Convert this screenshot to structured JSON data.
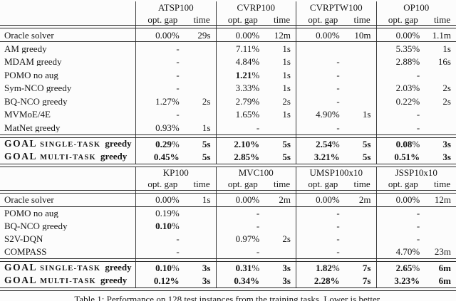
{
  "caption": "Table 1: Performance on 128 test instances from the training tasks. Lower is better.",
  "subheader": {
    "gap": "opt. gap",
    "time": "time"
  },
  "goal_brand": "GOAL",
  "tables": [
    {
      "columns": [
        "ATSP100",
        "CVRP100",
        "CVRPTW100",
        "OP100"
      ],
      "oracle": {
        "label": "Oracle solver",
        "cells": [
          [
            "0.00%",
            "29s"
          ],
          [
            "0.00%",
            "12m"
          ],
          [
            "0.00%",
            "10m"
          ],
          [
            "0.00%",
            "1.1m"
          ]
        ]
      },
      "baselines": [
        {
          "label": "AM greedy",
          "cells": [
            [
              "-",
              ""
            ],
            [
              "7.11%",
              "1s"
            ],
            [
              "",
              ""
            ],
            [
              "5.35%",
              "1s"
            ]
          ]
        },
        {
          "label": "MDAM greedy",
          "cells": [
            [
              "-",
              ""
            ],
            [
              "4.84%",
              "1s"
            ],
            [
              "-",
              ""
            ],
            [
              "2.88%",
              "16s"
            ]
          ]
        },
        {
          "label": "POMO no aug",
          "cells": [
            [
              "-",
              ""
            ],
            [
              "1.21%",
              "1s",
              "b"
            ],
            [
              "-",
              ""
            ],
            [
              "-",
              ""
            ]
          ]
        },
        {
          "label": "Sym-NCO greedy",
          "cells": [
            [
              "-",
              ""
            ],
            [
              "3.33%",
              "1s"
            ],
            [
              "-",
              ""
            ],
            [
              "2.03%",
              "2s"
            ]
          ]
        },
        {
          "label": "BQ-NCO greedy",
          "cells": [
            [
              "1.27%",
              "2s"
            ],
            [
              "2.79%",
              "2s"
            ],
            [
              "-",
              ""
            ],
            [
              "0.22%",
              "2s"
            ]
          ]
        },
        {
          "label": "MVMoE/4E",
          "cells": [
            [
              "-",
              ""
            ],
            [
              "1.65%",
              "1s"
            ],
            [
              "4.90%",
              "1s"
            ],
            [
              "-",
              ""
            ]
          ]
        },
        {
          "label": "MatNet greedy",
          "cells": [
            [
              "0.93%",
              "1s"
            ],
            [
              "-",
              ""
            ],
            [
              "-",
              ""
            ],
            [
              "-",
              ""
            ]
          ]
        }
      ],
      "goal_rows": [
        {
          "variant": "SINGLE-TASK",
          "suffix": "greedy",
          "cells": [
            [
              "0.29%",
              "5s",
              "b"
            ],
            [
              "2.10%",
              "5s"
            ],
            [
              "2.54%",
              "5s",
              "b"
            ],
            [
              "0.08%",
              "3s",
              "b"
            ]
          ]
        },
        {
          "variant": "MULTI-TASK",
          "suffix": "greedy",
          "cells": [
            [
              "0.45%",
              "5s"
            ],
            [
              "2.85%",
              "5s"
            ],
            [
              "3.21%",
              "5s"
            ],
            [
              "0.51%",
              "3s"
            ]
          ]
        }
      ]
    },
    {
      "columns": [
        "KP100",
        "MVC100",
        "UMSP100x10",
        "JSSP10x10"
      ],
      "oracle": {
        "label": "Oracle solver",
        "cells": [
          [
            "0.00%",
            "1s"
          ],
          [
            "0.00%",
            "2m"
          ],
          [
            "0.00%",
            "2m"
          ],
          [
            "0.00%",
            "12m"
          ]
        ]
      },
      "baselines": [
        {
          "label": "POMO no aug",
          "cells": [
            [
              "0.19%",
              ""
            ],
            [
              "-",
              ""
            ],
            [
              "-",
              ""
            ],
            [
              "-",
              ""
            ]
          ]
        },
        {
          "label": "BQ-NCO greedy",
          "cells": [
            [
              "0.10%",
              "",
              "b"
            ],
            [
              "-",
              ""
            ],
            [
              "-",
              ""
            ],
            [
              "-",
              ""
            ]
          ]
        },
        {
          "label": "S2V-DQN",
          "cells": [
            [
              "-",
              ""
            ],
            [
              "0.97%",
              "2s"
            ],
            [
              "-",
              ""
            ],
            [
              "-",
              ""
            ]
          ]
        },
        {
          "label": "COMPASS",
          "cells": [
            [
              "-",
              ""
            ],
            [
              "-",
              ""
            ],
            [
              "-",
              ""
            ],
            [
              "4.70%",
              "23m"
            ]
          ]
        }
      ],
      "goal_rows": [
        {
          "variant": "SINGLE-TASK",
          "suffix": "greedy",
          "cells": [
            [
              "0.10%",
              "3s",
              "b"
            ],
            [
              "0.31%",
              "3s",
              "b"
            ],
            [
              "1.82%",
              "7s",
              "b"
            ],
            [
              "2.65%",
              "6m",
              "b"
            ]
          ]
        },
        {
          "variant": "MULTI-TASK",
          "suffix": "greedy",
          "cells": [
            [
              "0.12%",
              "3s"
            ],
            [
              "0.34%",
              "3s"
            ],
            [
              "2.28%",
              "7s"
            ],
            [
              "3.23%",
              "6m"
            ]
          ]
        }
      ]
    }
  ]
}
